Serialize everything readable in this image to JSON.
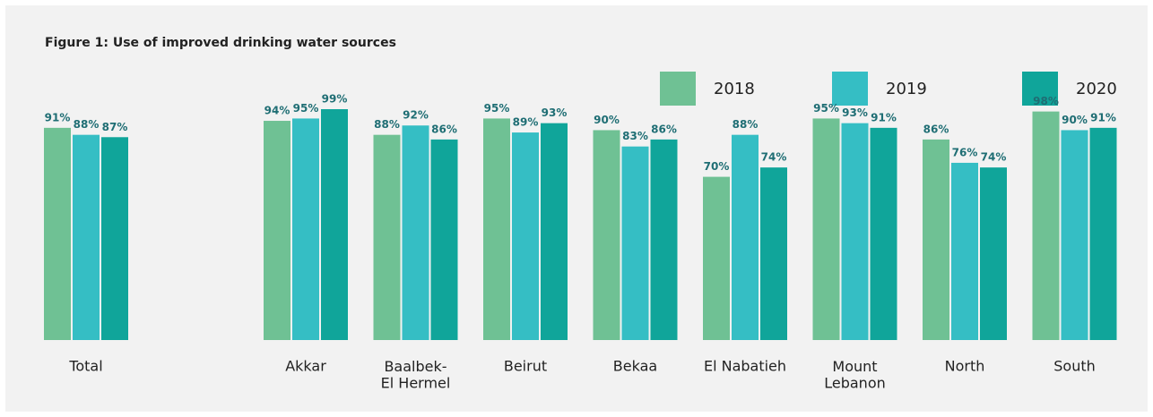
{
  "chart_data": {
    "type": "bar",
    "title": "Figure 1: Use of improved drinking water sources",
    "categories": [
      "Total",
      "Akkar",
      "Baalbek-\nEl Hermel",
      "Beirut",
      "Bekaa",
      "El Nabatieh",
      "Mount\nLebanon",
      "North",
      "South"
    ],
    "series": [
      {
        "name": "2018",
        "color": "#6fc194",
        "values": [
          91,
          94,
          88,
          95,
          90,
          70,
          95,
          86,
          98
        ],
        "value_labels": [
          "91%",
          "94%",
          "88%",
          "95%",
          "90%",
          "70%",
          "95%",
          "86%",
          "98%"
        ]
      },
      {
        "name": "2019",
        "color": "#35bec4",
        "values": [
          88,
          95,
          92,
          89,
          83,
          88,
          93,
          76,
          90
        ],
        "value_labels": [
          "88%",
          "95%",
          "92%",
          "89%",
          "83%",
          "88%",
          "93%",
          "76%",
          "90%"
        ]
      },
      {
        "name": "2020",
        "color": "#10a59a",
        "values": [
          87,
          99,
          86,
          93,
          86,
          74,
          91,
          74,
          91
        ],
        "value_labels": [
          "87%",
          "99%",
          "86%",
          "93%",
          "86%",
          "74%",
          "91%",
          "74%",
          "91%"
        ]
      }
    ],
    "legend": "top-right"
  }
}
